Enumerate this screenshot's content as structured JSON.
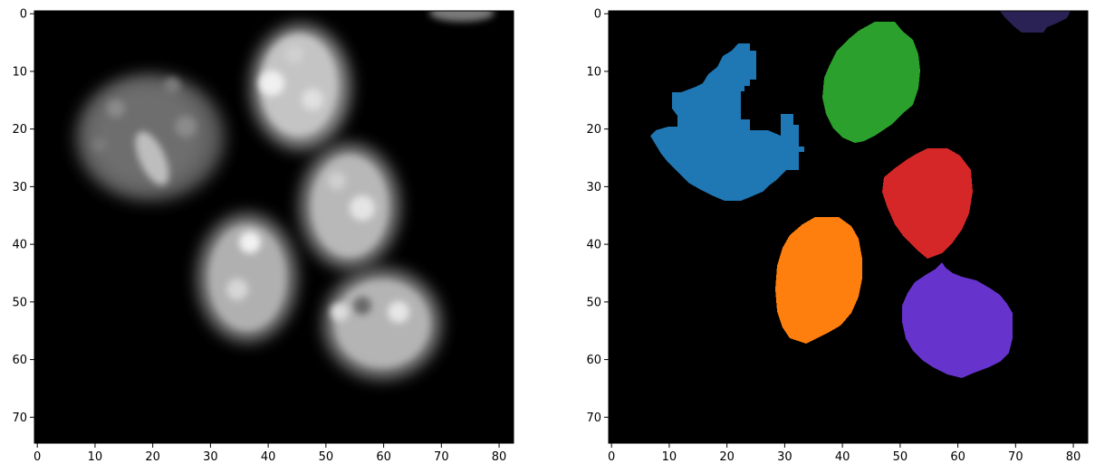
{
  "panels": [
    {
      "id": "raw",
      "description": "grayscale microscopy image of cell nuclei",
      "x_ticks": [
        "0",
        "10",
        "20",
        "30",
        "40",
        "50",
        "60",
        "70",
        "80"
      ],
      "y_ticks": [
        "0",
        "10",
        "20",
        "30",
        "40",
        "50",
        "60",
        "70"
      ]
    },
    {
      "id": "labels",
      "description": "segmentation label mask",
      "x_ticks": [
        "0",
        "10",
        "20",
        "30",
        "40",
        "50",
        "60",
        "70",
        "80"
      ],
      "y_ticks": [
        "0",
        "10",
        "20",
        "30",
        "40",
        "50",
        "60",
        "70"
      ]
    }
  ],
  "chart_data": [
    {
      "type": "heatmap",
      "title": "",
      "xlabel": "",
      "ylabel": "",
      "xlim": [
        -0.5,
        82.5
      ],
      "ylim": [
        74.5,
        -0.5
      ],
      "colormap": "gray",
      "nuclei": [
        {
          "cx": 20,
          "cy": 23,
          "rx": 13,
          "ry": 11,
          "brightness": 0.55
        },
        {
          "cx": 46,
          "cy": 12,
          "rx": 8.5,
          "ry": 10.5,
          "brightness": 0.85
        },
        {
          "cx": 55,
          "cy": 33,
          "rx": 8.5,
          "ry": 10.5,
          "brightness": 0.8
        },
        {
          "cx": 37,
          "cy": 46,
          "rx": 8.5,
          "ry": 11,
          "brightness": 0.8
        },
        {
          "cx": 60,
          "cy": 54,
          "rx": 10,
          "ry": 9,
          "brightness": 0.8
        },
        {
          "cx": 74,
          "cy": 0,
          "rx": 5,
          "ry": 1.5,
          "brightness": 0.5
        }
      ]
    },
    {
      "type": "heatmap",
      "title": "",
      "xlabel": "",
      "ylabel": "",
      "xlim": [
        -0.5,
        82.5
      ],
      "ylim": [
        74.5,
        -0.5
      ],
      "colormap": "tab10 labels",
      "regions": [
        {
          "label": 1,
          "color": "#1f77b4",
          "cx": 21,
          "cy": 24,
          "rx": 12,
          "ry": 9
        },
        {
          "label": 2,
          "color": "#2ca02c",
          "cx": 46,
          "cy": 12,
          "rx": 7.5,
          "ry": 10
        },
        {
          "label": 3,
          "color": "#d62728",
          "cx": 55,
          "cy": 33,
          "rx": 7.5,
          "ry": 9.5
        },
        {
          "label": 4,
          "color": "#ff7f0e",
          "cx": 37,
          "cy": 46,
          "rx": 7.5,
          "ry": 11
        },
        {
          "label": 5,
          "color": "#6633cc",
          "cx": 61,
          "cy": 54,
          "rx": 9.5,
          "ry": 8.5
        },
        {
          "label": 6,
          "color": "#2a2255",
          "cx": 73,
          "cy": 0,
          "rx": 6,
          "ry": 2.5
        }
      ]
    }
  ]
}
